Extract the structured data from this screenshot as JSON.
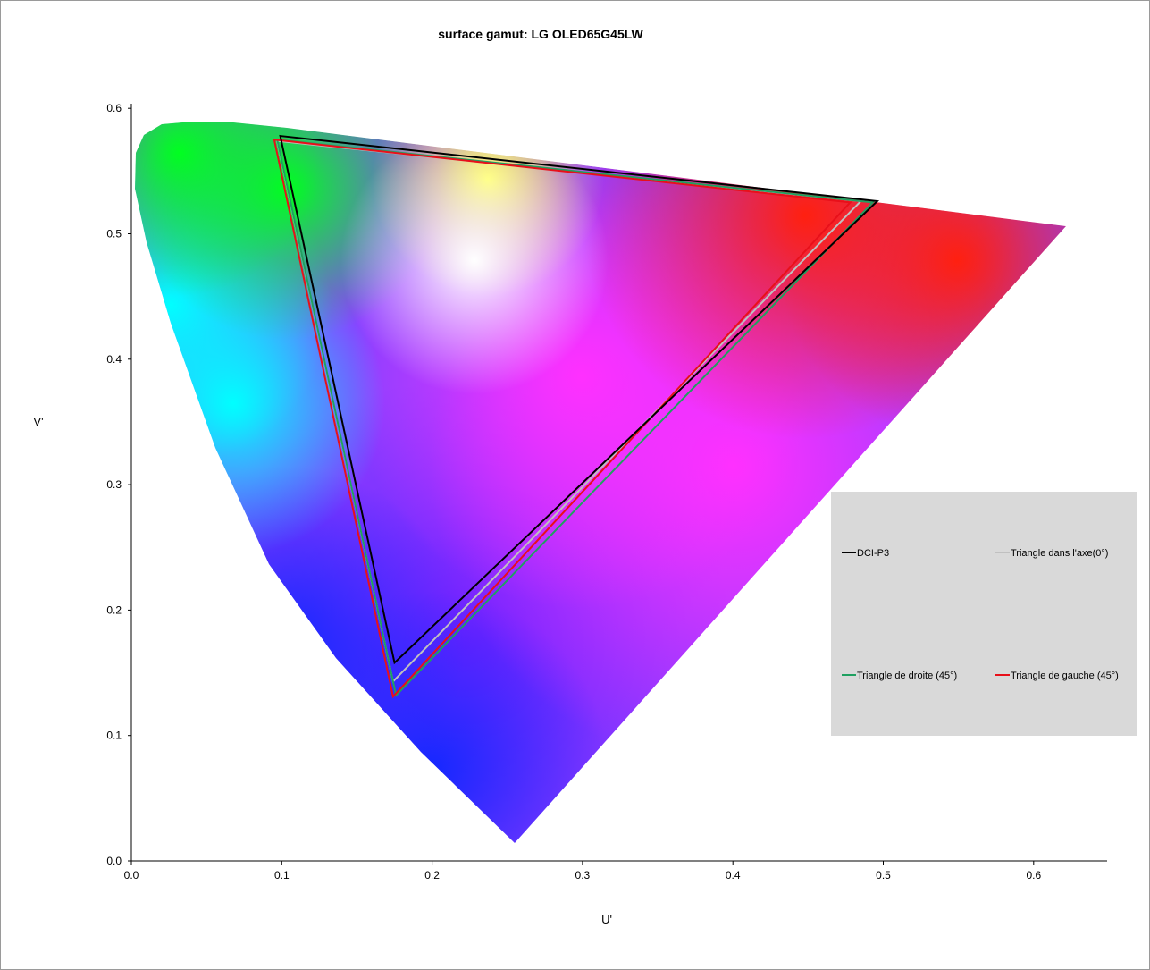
{
  "chart_data": {
    "type": "line",
    "title": "surface gamut: LG  OLED65G45LW",
    "xlabel": "U'",
    "ylabel": "V'",
    "xlim": [
      0.0,
      0.65
    ],
    "ylim": [
      0.0,
      0.6
    ],
    "xticks": [
      "0.0",
      "0.1",
      "0.2",
      "0.3",
      "0.4",
      "0.5",
      "0.6"
    ],
    "yticks": [
      "0.0",
      "0.1",
      "0.2",
      "0.3",
      "0.4",
      "0.5",
      "0.6"
    ],
    "grid": false,
    "legend_placement": "right",
    "background": "CIE 1976 u'v' chromaticity diagram",
    "series": [
      {
        "name": "DCI-P3",
        "color": "#000000",
        "points": [
          [
            0.099,
            0.578
          ],
          [
            0.496,
            0.526
          ],
          [
            0.175,
            0.158
          ]
        ]
      },
      {
        "name": "Triangle dans l'axe(0°)",
        "color": "#c0c0c0",
        "points": [
          [
            0.097,
            0.574
          ],
          [
            0.485,
            0.526
          ],
          [
            0.174,
            0.143
          ]
        ]
      },
      {
        "name": "Triangle de droite (45°)",
        "color": "#1fa060",
        "points": [
          [
            0.097,
            0.575
          ],
          [
            0.493,
            0.525
          ],
          [
            0.176,
            0.132
          ]
        ]
      },
      {
        "name": "Triangle de gauche (45°)",
        "color": "#e8101a",
        "points": [
          [
            0.095,
            0.575
          ],
          [
            0.478,
            0.525
          ],
          [
            0.174,
            0.131
          ]
        ]
      }
    ]
  }
}
